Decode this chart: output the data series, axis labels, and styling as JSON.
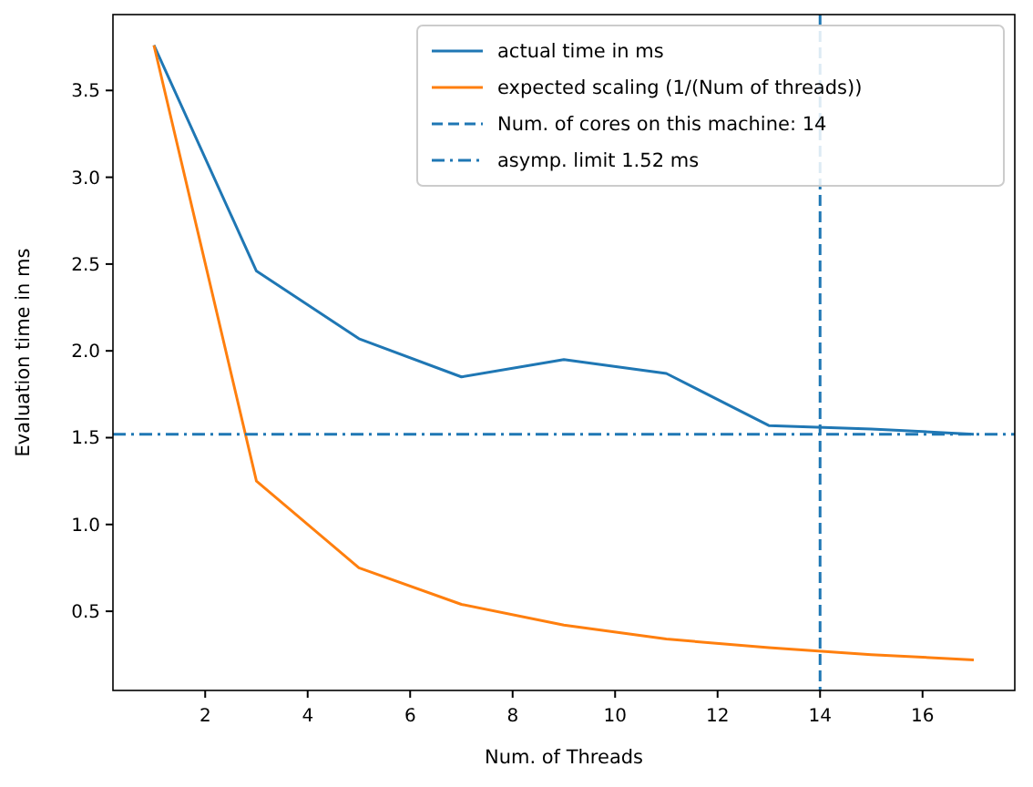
{
  "chart_data": {
    "type": "line",
    "xlabel": "Num. of Threads",
    "ylabel": "Evaluation time in ms",
    "x": [
      1,
      3,
      5,
      7,
      9,
      11,
      13,
      15,
      17
    ],
    "series": [
      {
        "name": "actual time in ms",
        "color": "#1f77b4",
        "values": [
          3.76,
          2.46,
          2.07,
          1.85,
          1.95,
          1.87,
          1.57,
          1.55,
          1.52
        ]
      },
      {
        "name": "expected scaling (1/(Num of threads))",
        "color": "#ff7f0e",
        "values": [
          3.76,
          1.25,
          0.75,
          0.54,
          0.42,
          0.34,
          0.29,
          0.25,
          0.22
        ]
      }
    ],
    "ref_lines": [
      {
        "axis": "x",
        "value": 14,
        "label": "Num. of cores on this machine: 14",
        "color": "#1f77b4",
        "line_style": "dashed"
      },
      {
        "axis": "y",
        "value": 1.52,
        "label": "asymp. limit 1.52 ms",
        "color": "#1f77b4",
        "line_style": "dashdot"
      }
    ],
    "xlim": [
      0.2,
      17.8
    ],
    "xticks": [
      2,
      4,
      6,
      8,
      10,
      12,
      14,
      16
    ],
    "ylim": [
      0.044,
      3.937
    ],
    "yticks": [
      {
        "value": 0.5,
        "label": "0.5"
      },
      {
        "value": 1,
        "label": "1.0"
      },
      {
        "value": 1.5,
        "label": "1.5"
      },
      {
        "value": 2,
        "label": "2.0"
      },
      {
        "value": 2.5,
        "label": "2.5"
      },
      {
        "value": 3,
        "label": "3.0"
      },
      {
        "value": 3.5,
        "label": "3.5"
      }
    ],
    "legend": "top right",
    "grid": false,
    "marker": "none",
    "line_style": "solid"
  }
}
